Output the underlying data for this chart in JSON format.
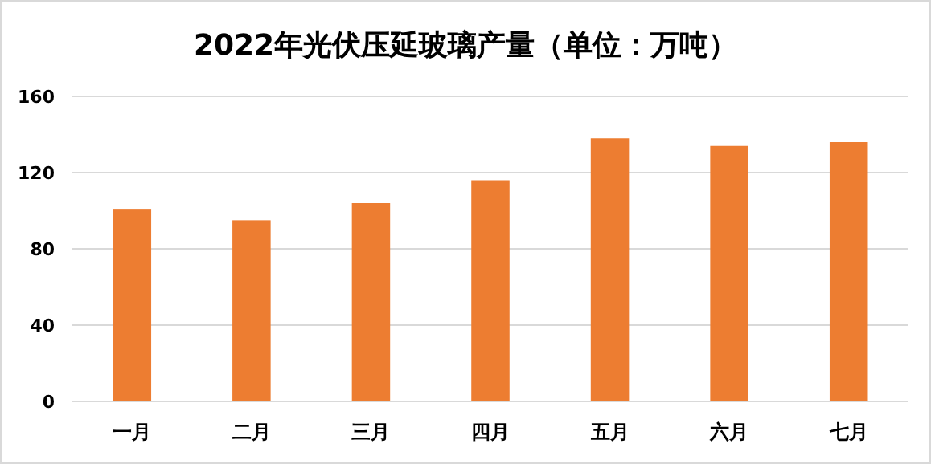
{
  "chart_data": {
    "type": "bar",
    "title": "2022年光伏压延玻璃产量（单位：万吨）",
    "categories": [
      "一月",
      "二月",
      "三月",
      "四月",
      "五月",
      "六月",
      "七月"
    ],
    "values": [
      101,
      95,
      104,
      116,
      138,
      134,
      136
    ],
    "color": "#ed7d31",
    "ylim": [
      0,
      160
    ],
    "yticks": [
      0,
      40,
      80,
      120,
      160
    ],
    "grid": "y"
  }
}
